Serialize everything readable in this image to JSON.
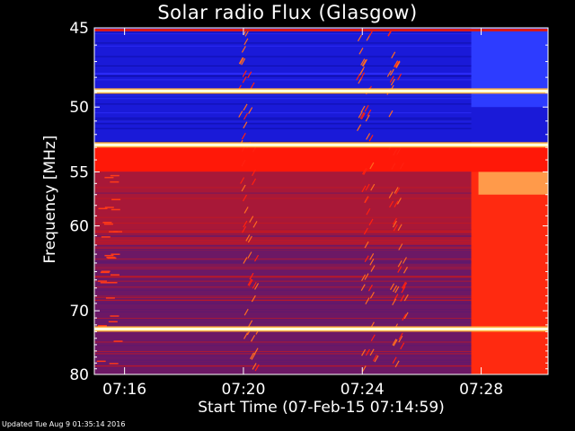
{
  "chart_data": {
    "type": "heatmap",
    "title": "Solar radio Flux (Glasgow)",
    "xlabel": "Start Time (07-Feb-15 07:14:59)",
    "ylabel": "Frequency [MHz]",
    "x_start": "07:14:59",
    "x_end": "07:30:15",
    "x_ticks": [
      "07:16",
      "07:20",
      "07:24",
      "07:28"
    ],
    "y_ticks": [
      45,
      50,
      55,
      60,
      70,
      80
    ],
    "ylim": [
      45,
      80
    ],
    "y_scale": "reciprocal",
    "colormap": "blue-red-yellow-white (IDL colour table)",
    "colors": {
      "low": "#1a1ad8",
      "mid": "#a81838",
      "high": "#ff2a10",
      "peak": "#ffffe0"
    },
    "features": {
      "constant_lines_mhz": [
        48.9,
        52.8,
        72.6
      ],
      "bright_band_mhz": [
        53.0,
        55.0
      ],
      "burst_lanes_time": [
        "07:20:00",
        "07:24:00",
        "07:25:00"
      ],
      "enhancement_start": "07:27:40"
    }
  },
  "footer": "Updated Tue Aug  9 01:35:14 2016"
}
